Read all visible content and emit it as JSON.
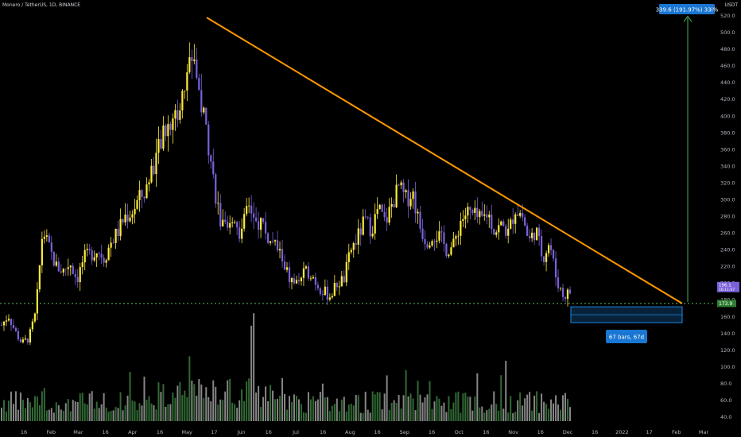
{
  "header": {
    "title": "Monero / TetherUS, 1D, BINANCE",
    "unit": "USDT"
  },
  "annotations": {
    "target_label": "339.6 (191.97%) 33i%",
    "range_label": "67 bars, 67d",
    "current_price_tag": "196.1",
    "current_price_sub": "16:11:07",
    "support_price_tag": "173.9"
  },
  "colors": {
    "background": "#000000",
    "up_candle": "#ffeb3b",
    "down_candle": "#7b61d9",
    "trendline": "#ff9800",
    "support_line": "#4caf50",
    "target_arrow": "#4caf50",
    "range_box": "#1e88e5",
    "axis_text": "#b2b5be"
  },
  "chart_data": {
    "type": "candlestick",
    "title": "Monero / TetherUS, 1D, BINANCE",
    "ylabel": "USDT",
    "ylim": [
      20,
      530
    ],
    "y_ticks": [
      "520.0",
      "500.0",
      "480.0",
      "460.0",
      "440.0",
      "420.0",
      "400.0",
      "380.0",
      "360.0",
      "340.0",
      "320.0",
      "300.0",
      "280.0",
      "260.0",
      "240.0",
      "220.0",
      "200.0",
      "180.0",
      "160.0",
      "140.0",
      "120.0",
      "100.0",
      "80.0",
      "60.0",
      "40.0"
    ],
    "x_ticks": [
      "16",
      "Feb",
      "Mar",
      "16",
      "Apr",
      "16",
      "May",
      "17",
      "Jun",
      "16",
      "Jul",
      "16",
      "Aug",
      "16",
      "Sep",
      "16",
      "Oct",
      "16",
      "Nov",
      "16",
      "Dec",
      "16",
      "2022",
      "17",
      "Feb",
      "Mar"
    ],
    "close_path": [
      150,
      162,
      142,
      128,
      135,
      165,
      265,
      240,
      220,
      215,
      225,
      205,
      230,
      235,
      240,
      230,
      250,
      262,
      280,
      285,
      300,
      310,
      340,
      360,
      385,
      400,
      405,
      450,
      480,
      420,
      380,
      320,
      270,
      260,
      280,
      255,
      300,
      270,
      275,
      250,
      245,
      230,
      205,
      200,
      210,
      215,
      200,
      190,
      185,
      200,
      205,
      240,
      255,
      275,
      265,
      290,
      272,
      295,
      315,
      300,
      310,
      270,
      250,
      260,
      255,
      240,
      245,
      275,
      285,
      280,
      275,
      285,
      262,
      270,
      260,
      290,
      282,
      250,
      265,
      230,
      250,
      205,
      185,
      190
    ],
    "trendline": {
      "from": 518,
      "to": 176
    },
    "support_level": 176,
    "current_price": 196.1,
    "target": {
      "price": 339.6,
      "change_pct": 191.97
    },
    "range_box": {
      "bars": 67,
      "days": 67
    },
    "volume_scale": [
      40,
      100
    ]
  }
}
